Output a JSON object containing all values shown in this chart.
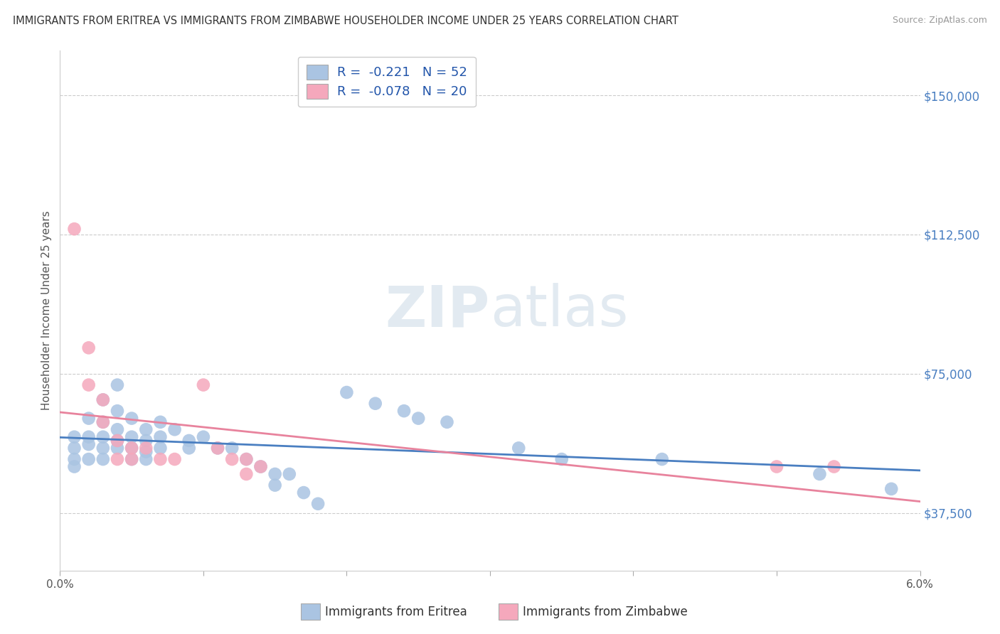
{
  "title": "IMMIGRANTS FROM ERITREA VS IMMIGRANTS FROM ZIMBABWE HOUSEHOLDER INCOME UNDER 25 YEARS CORRELATION CHART",
  "source": "Source: ZipAtlas.com",
  "ylabel": "Householder Income Under 25 years",
  "ytick_values": [
    37500,
    75000,
    112500,
    150000
  ],
  "xlim": [
    0.0,
    0.06
  ],
  "ylim": [
    22000,
    162000
  ],
  "legend_eritrea": "R =  -0.221   N = 52",
  "legend_zimbabwe": "R =  -0.078   N = 20",
  "color_eritrea": "#aac4e2",
  "color_zimbabwe": "#f5a8bc",
  "line_color_eritrea": "#4a7fc1",
  "line_color_zimbabwe": "#e8839d",
  "background_color": "#ffffff",
  "grid_color": "#cccccc",
  "eritrea_points": [
    [
      0.001,
      58000
    ],
    [
      0.001,
      55000
    ],
    [
      0.001,
      52000
    ],
    [
      0.001,
      50000
    ],
    [
      0.002,
      63000
    ],
    [
      0.002,
      58000
    ],
    [
      0.002,
      56000
    ],
    [
      0.002,
      52000
    ],
    [
      0.003,
      68000
    ],
    [
      0.003,
      62000
    ],
    [
      0.003,
      58000
    ],
    [
      0.003,
      55000
    ],
    [
      0.003,
      52000
    ],
    [
      0.004,
      72000
    ],
    [
      0.004,
      65000
    ],
    [
      0.004,
      60000
    ],
    [
      0.004,
      57000
    ],
    [
      0.004,
      55000
    ],
    [
      0.005,
      63000
    ],
    [
      0.005,
      58000
    ],
    [
      0.005,
      55000
    ],
    [
      0.005,
      52000
    ],
    [
      0.006,
      60000
    ],
    [
      0.006,
      57000
    ],
    [
      0.006,
      54000
    ],
    [
      0.006,
      52000
    ],
    [
      0.007,
      62000
    ],
    [
      0.007,
      58000
    ],
    [
      0.007,
      55000
    ],
    [
      0.008,
      60000
    ],
    [
      0.009,
      57000
    ],
    [
      0.009,
      55000
    ],
    [
      0.01,
      58000
    ],
    [
      0.011,
      55000
    ],
    [
      0.012,
      55000
    ],
    [
      0.013,
      52000
    ],
    [
      0.014,
      50000
    ],
    [
      0.015,
      48000
    ],
    [
      0.015,
      45000
    ],
    [
      0.016,
      48000
    ],
    [
      0.017,
      43000
    ],
    [
      0.018,
      40000
    ],
    [
      0.02,
      70000
    ],
    [
      0.022,
      67000
    ],
    [
      0.024,
      65000
    ],
    [
      0.025,
      63000
    ],
    [
      0.027,
      62000
    ],
    [
      0.032,
      55000
    ],
    [
      0.035,
      52000
    ],
    [
      0.042,
      52000
    ],
    [
      0.053,
      48000
    ],
    [
      0.058,
      44000
    ]
  ],
  "zimbabwe_points": [
    [
      0.001,
      114000
    ],
    [
      0.002,
      82000
    ],
    [
      0.002,
      72000
    ],
    [
      0.003,
      68000
    ],
    [
      0.003,
      62000
    ],
    [
      0.004,
      57000
    ],
    [
      0.004,
      52000
    ],
    [
      0.005,
      55000
    ],
    [
      0.005,
      52000
    ],
    [
      0.006,
      55000
    ],
    [
      0.007,
      52000
    ],
    [
      0.008,
      52000
    ],
    [
      0.01,
      72000
    ],
    [
      0.011,
      55000
    ],
    [
      0.012,
      52000
    ],
    [
      0.013,
      52000
    ],
    [
      0.013,
      48000
    ],
    [
      0.014,
      50000
    ],
    [
      0.05,
      50000
    ],
    [
      0.054,
      50000
    ]
  ]
}
